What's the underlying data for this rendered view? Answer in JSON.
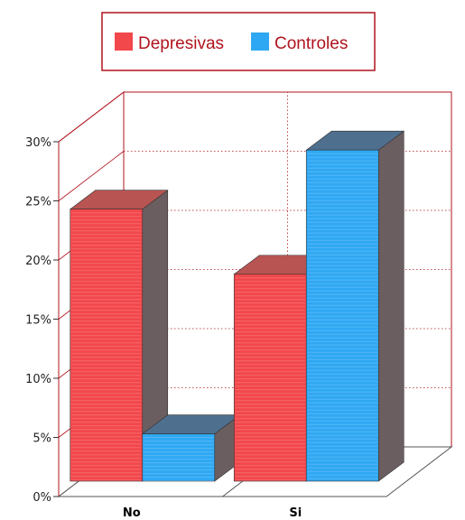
{
  "chart_data": {
    "type": "bar",
    "categories": [
      "No",
      "Si"
    ],
    "series": [
      {
        "name": "Depresivas",
        "values": [
          23,
          17.5
        ],
        "color": "#f2474b",
        "top_color": "#b85452",
        "side_color": "#6b5e60"
      },
      {
        "name": "Controles",
        "values": [
          4,
          28
        ],
        "color": "#2fa8f3",
        "top_color": "#4f6f8e",
        "side_color": "#6b5e60"
      }
    ],
    "ylim": [
      0,
      30
    ],
    "yticks": [
      "0%",
      "5%",
      "10%",
      "15%",
      "20%",
      "25%",
      "30%"
    ],
    "ytick_values": [
      0,
      5,
      10,
      15,
      20,
      25,
      30
    ],
    "grid": true,
    "legend": "top-center",
    "style": "3d"
  }
}
